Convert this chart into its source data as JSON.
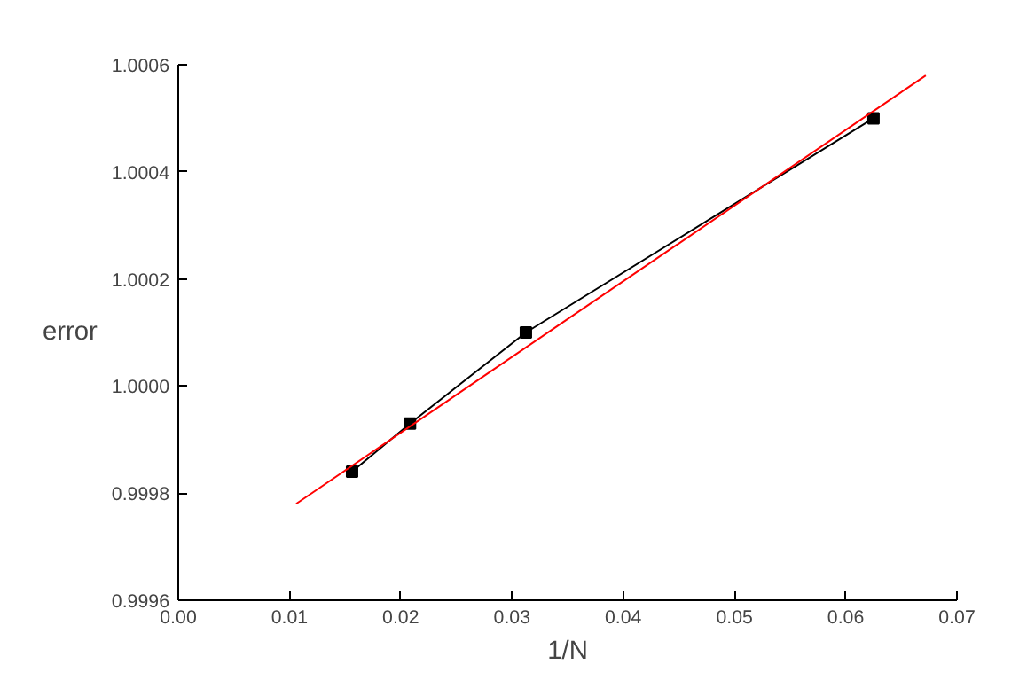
{
  "chart_data": {
    "type": "line",
    "xlabel": "1/N",
    "ylabel": "error",
    "xlim": [
      0,
      0.07
    ],
    "xticks": [
      {
        "value": 0,
        "label": "0.00"
      },
      {
        "value": 0.01,
        "label": "0.01"
      },
      {
        "value": 0.02,
        "label": "0.02"
      },
      {
        "value": 0.03,
        "label": "0.03"
      },
      {
        "value": 0.04,
        "label": "0.04"
      },
      {
        "value": 0.05,
        "label": "0.05"
      },
      {
        "value": 0.06,
        "label": "0.06"
      },
      {
        "value": 0.07,
        "label": "0.07"
      }
    ],
    "ylim": [
      0.9996,
      1.0006
    ],
    "yticks": [
      0.9996,
      0.9998,
      {
        "value": 1.0,
        "label": "1.0000"
      },
      1.0002,
      1.0004,
      1.0006
    ],
    "grid": false,
    "series": [
      {
        "color": "#000000",
        "marker": "square",
        "x": [
          0.015625,
          0.020833,
          0.03125,
          0.0625
        ],
        "values": [
          0.99984,
          0.99993,
          1.0001,
          1.0005
        ]
      },
      {
        "color": "#ff0000",
        "marker": "none",
        "x": [
          0.0106,
          0.0672
        ],
        "values": [
          0.99978,
          1.00058
        ]
      }
    ]
  }
}
